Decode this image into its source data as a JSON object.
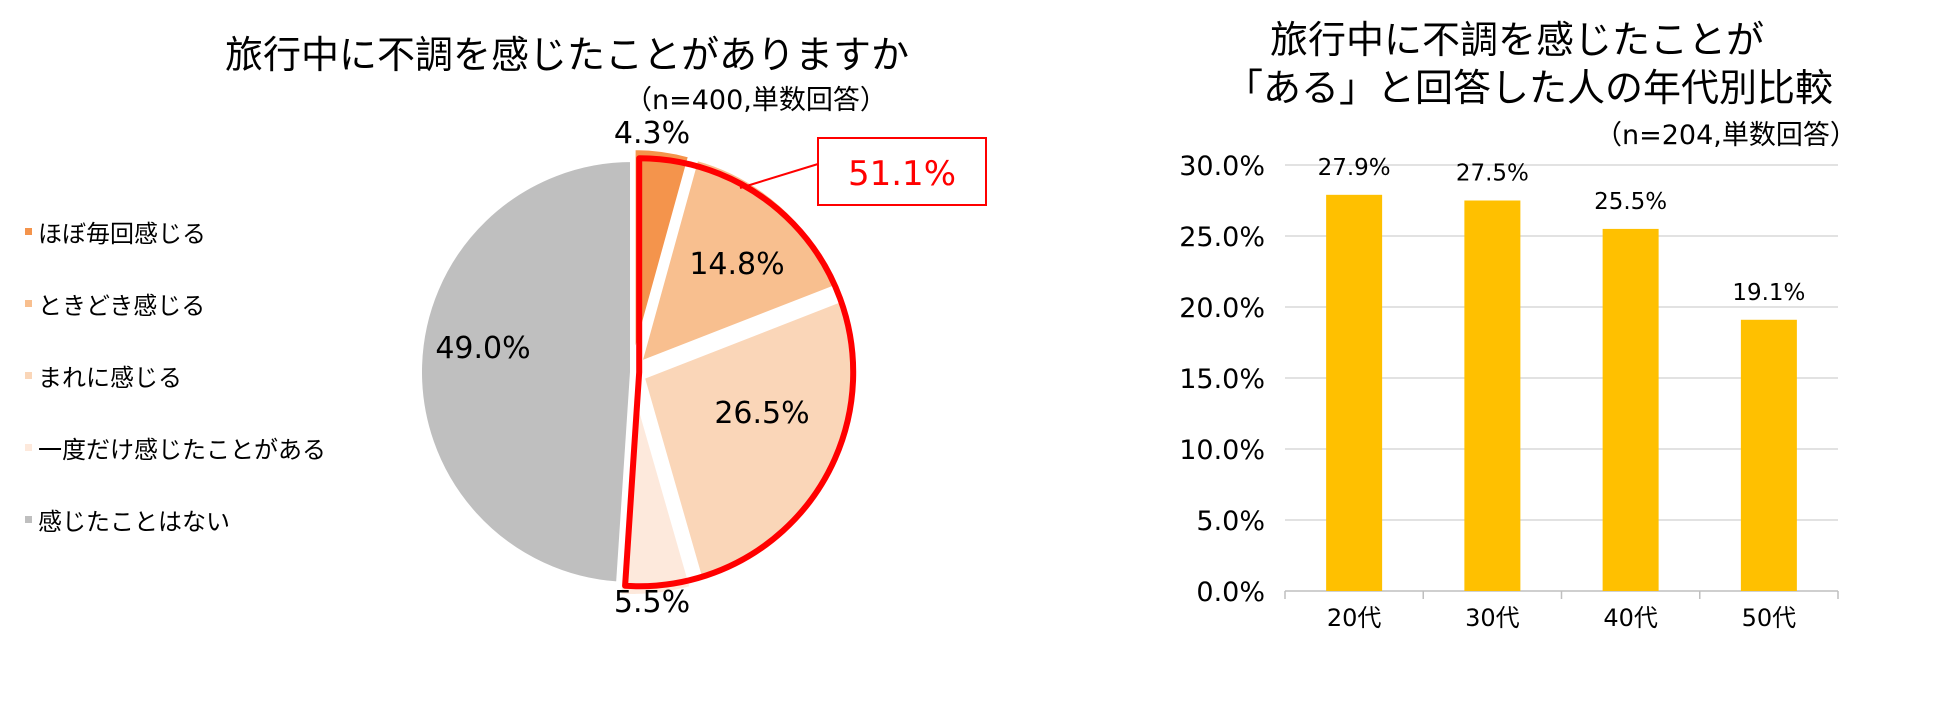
{
  "chart_data": [
    {
      "type": "pie",
      "title": "旅行中に不調を感じたことがありますか",
      "subtitle": "（n=400,単数回答）",
      "slices": [
        {
          "label": "ほぼ毎回感じる",
          "value": 4.3,
          "display": "4.3%",
          "color": "#f4944c"
        },
        {
          "label": "ときどき感じる",
          "value": 14.8,
          "display": "14.8%",
          "color": "#f8bf8f"
        },
        {
          "label": "まれに感じる",
          "value": 26.5,
          "display": "26.5%",
          "color": "#fad6b8"
        },
        {
          "label": "一度だけ感じたことがある",
          "value": 5.5,
          "display": "5.5%",
          "color": "#fde9dc"
        },
        {
          "label": "感じたことはない",
          "value": 49.0,
          "display": "49.0%",
          "color": "#bfbfbf"
        }
      ],
      "callout": {
        "text": "51.1%",
        "color": "#ff0000"
      },
      "legend_position": "left"
    },
    {
      "type": "bar",
      "title_lines": [
        "旅行中に不調を感じたことが",
        "「ある」と回答した人の年代別比較"
      ],
      "subtitle": "（n=204,単数回答）",
      "categories": [
        "20代",
        "30代",
        "40代",
        "50代"
      ],
      "values": [
        27.9,
        27.5,
        25.5,
        19.1
      ],
      "value_labels": [
        "27.9%",
        "27.5%",
        "25.5%",
        "19.1%"
      ],
      "yticks": [
        "0.0%",
        "5.0%",
        "10.0%",
        "15.0%",
        "20.0%",
        "25.0%",
        "30.0%"
      ],
      "ylim": [
        0,
        30
      ],
      "grid": true,
      "bar_color": "#ffc000"
    }
  ]
}
